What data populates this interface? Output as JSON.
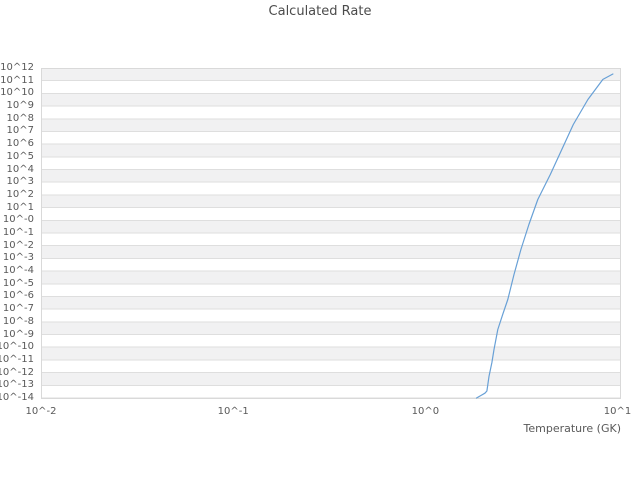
{
  "title": "Calculated Rate",
  "colors": {
    "background": "#ffffff",
    "band": "#f1f1f2",
    "gridline": "#dedede",
    "spine": "#d9d9d9",
    "tick_text": "#595959",
    "title_text": "#4c4c4c",
    "line": "#68a0d6"
  },
  "chart_data": {
    "type": "line",
    "title": "Calculated Rate",
    "xlabel": "Temperature (GK)",
    "ylabel": "",
    "x_scale": "log",
    "y_scale": "log",
    "x_unit": "GK",
    "xlim_log10": [
      -2,
      1.018
    ],
    "ylim_log10": [
      -14,
      12
    ],
    "grid": "horizontal-only",
    "bands": "alternating-gray-white-from-top",
    "legend": "none",
    "x_ticks": [
      {
        "log10": -2,
        "label": "10^-2"
      },
      {
        "log10": -1,
        "label": "10^-1"
      },
      {
        "log10": 0,
        "label": "10^0"
      },
      {
        "log10": 1,
        "label": "10^1"
      }
    ],
    "y_ticks": [
      {
        "log10": 12,
        "label": "10^12"
      },
      {
        "log10": 11,
        "label": "10^11"
      },
      {
        "log10": 10,
        "label": "10^10"
      },
      {
        "log10": 9,
        "label": "10^9"
      },
      {
        "log10": 8,
        "label": "10^8"
      },
      {
        "log10": 7,
        "label": "10^7"
      },
      {
        "log10": 6,
        "label": "10^6"
      },
      {
        "log10": 5,
        "label": "10^5"
      },
      {
        "log10": 4,
        "label": "10^4"
      },
      {
        "log10": 3,
        "label": "10^3"
      },
      {
        "log10": 2,
        "label": "10^2"
      },
      {
        "log10": 1,
        "label": "10^1"
      },
      {
        "log10": 0,
        "label": "10^-0"
      },
      {
        "log10": -1,
        "label": "10^-1"
      },
      {
        "log10": -2,
        "label": "10^-2"
      },
      {
        "log10": -3,
        "label": "10^-3"
      },
      {
        "log10": -4,
        "label": "10^-4"
      },
      {
        "log10": -5,
        "label": "10^-5"
      },
      {
        "log10": -6,
        "label": "10^-6"
      },
      {
        "log10": -7,
        "label": "10^-7"
      },
      {
        "log10": -8,
        "label": "10^-8"
      },
      {
        "log10": -9,
        "label": "10^-9"
      },
      {
        "log10": -10,
        "label": "10^-10"
      },
      {
        "log10": -11,
        "label": "10^-11"
      },
      {
        "log10": -12,
        "label": "10^-12"
      },
      {
        "log10": -13,
        "label": "10^-13"
      },
      {
        "log10": -14,
        "label": "10^-14"
      }
    ],
    "series": [
      {
        "name": "Calculated Rate",
        "color": "#68a0d6",
        "points_log10_T_log10_rate": [
          [
            0.266,
            -14.0
          ],
          [
            0.289,
            -13.8
          ],
          [
            0.31,
            -13.62
          ],
          [
            0.32,
            -13.45
          ],
          [
            0.331,
            -12.3
          ],
          [
            0.346,
            -11.2
          ],
          [
            0.357,
            -10.18
          ],
          [
            0.377,
            -8.6
          ],
          [
            0.403,
            -7.4
          ],
          [
            0.429,
            -6.24
          ],
          [
            0.461,
            -4.27
          ],
          [
            0.497,
            -2.3
          ],
          [
            0.539,
            -0.33
          ],
          [
            0.585,
            1.64
          ],
          [
            0.65,
            3.61
          ],
          [
            0.71,
            5.58
          ],
          [
            0.77,
            7.55
          ],
          [
            0.846,
            9.52
          ],
          [
            0.924,
            11.1
          ],
          [
            0.976,
            11.53
          ]
        ]
      }
    ]
  }
}
